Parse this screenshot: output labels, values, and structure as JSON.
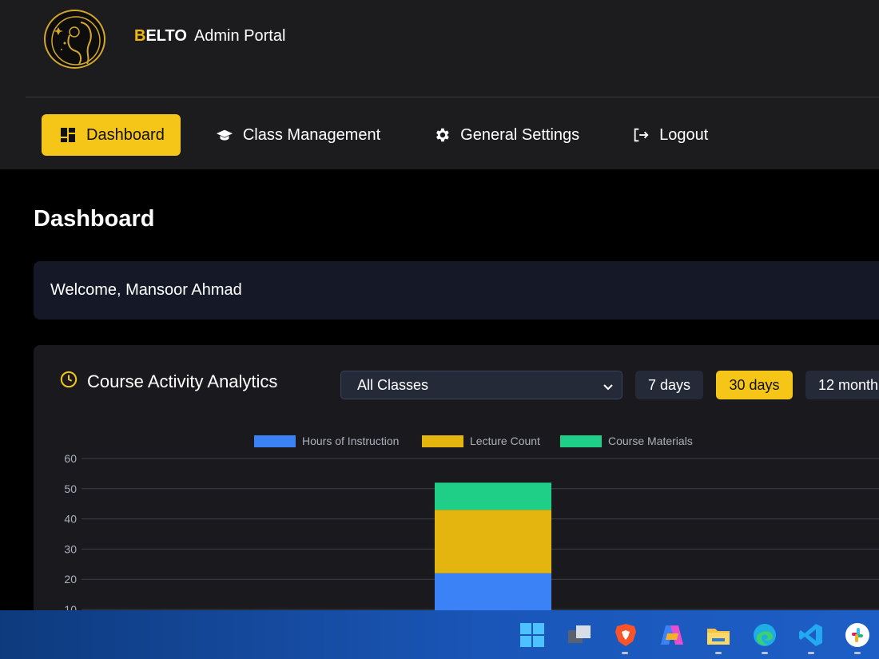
{
  "brand": {
    "initial": "B",
    "rest": "ELTO",
    "subtitle": "Admin Portal"
  },
  "nav": [
    {
      "label": "Dashboard",
      "icon": "dashboard-icon",
      "active": true
    },
    {
      "label": "Class Management",
      "icon": "graduation-cap-icon",
      "active": false
    },
    {
      "label": "General Settings",
      "icon": "gear-icon",
      "active": false
    },
    {
      "label": "Logout",
      "icon": "logout-icon",
      "active": false
    }
  ],
  "page": {
    "title": "Dashboard",
    "welcome": "Welcome, Mansoor Ahmad"
  },
  "analytics": {
    "title": "Course Activity Analytics",
    "filter": {
      "selected": "All Classes"
    },
    "ranges": [
      {
        "label": "7 days",
        "active": false
      },
      {
        "label": "30 days",
        "active": true
      },
      {
        "label": "12 month",
        "active": false
      }
    ]
  },
  "colors": {
    "accent": "#f5c518",
    "blue": "#3b82f6",
    "yellow": "#e5b50f",
    "green": "#1fcf87"
  },
  "chart_data": {
    "type": "bar",
    "stacked": true,
    "yticks": [
      "60",
      "50",
      "40",
      "30",
      "20",
      "10"
    ],
    "ylim": [
      0,
      60
    ],
    "legend_position": "top",
    "series": [
      {
        "name": "Hours of Instruction",
        "values": [
          22
        ],
        "color": "#3b82f6"
      },
      {
        "name": "Lecture Count",
        "values": [
          21
        ],
        "color": "#e5b50f"
      },
      {
        "name": "Course Materials",
        "values": [
          9
        ],
        "color": "#1fcf87"
      }
    ],
    "grid": true
  },
  "taskbar": [
    "windows-start-icon",
    "task-view-icon",
    "brave-icon",
    "copilot-icon",
    "file-explorer-icon",
    "edge-icon",
    "vscode-icon",
    "slack-icon"
  ]
}
